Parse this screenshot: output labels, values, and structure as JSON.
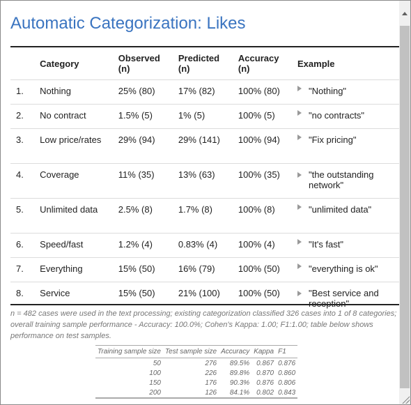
{
  "title": "Automatic Categorization: Likes",
  "table": {
    "headers": {
      "category": "Category",
      "observed": "Observed\n(n)",
      "predicted": "Predicted\n(n)",
      "accuracy": "Accuracy\n(n)",
      "example": "Example"
    },
    "rows": [
      {
        "num": "1.",
        "category": "Nothing",
        "observed": "25% (80)",
        "predicted": "17% (82)",
        "accuracy": "100% (80)",
        "example": "\"Nothing\""
      },
      {
        "num": "2.",
        "category": "No contract",
        "observed": "1.5% (5)",
        "predicted": "1% (5)",
        "accuracy": "100% (5)",
        "example": "\"no contracts\""
      },
      {
        "num": "3.",
        "category": "Low price/rates",
        "observed": "29% (94)",
        "predicted": "29% (141)",
        "accuracy": "100% (94)",
        "example": "\"Fix pricing\""
      },
      {
        "num": "4.",
        "category": "Coverage",
        "observed": "11% (35)",
        "predicted": "13% (63)",
        "accuracy": "100% (35)",
        "example": "\"the outstanding network\""
      },
      {
        "num": "5.",
        "category": "Unlimited data",
        "observed": "2.5% (8)",
        "predicted": "1.7% (8)",
        "accuracy": "100% (8)",
        "example": "\"unlimited data\""
      },
      {
        "num": "6.",
        "category": "Speed/fast",
        "observed": "1.2% (4)",
        "predicted": "0.83% (4)",
        "accuracy": "100% (4)",
        "example": "\"It's fast\""
      },
      {
        "num": "7.",
        "category": "Everything",
        "observed": "15% (50)",
        "predicted": "16% (79)",
        "accuracy": "100% (50)",
        "example": "\"everything is ok\""
      },
      {
        "num": "8.",
        "category": "Service",
        "observed": "15% (50)",
        "predicted": "21% (100)",
        "accuracy": "100% (50)",
        "example": "\"Best service and reception\""
      }
    ]
  },
  "footnote": "n = 482 cases were used in the text processing; existing categorization classified 326 cases into 1 of 8 categories; overall training sample performance - Accuracy: 100.0%; Cohen's Kappa: 1.00; F1:1.00; table below shows performance on test samples.",
  "performance": {
    "headers": [
      "Training sample size",
      "Test sample size",
      "Accuracy",
      "Kappa",
      "F1"
    ],
    "rows": [
      [
        "50",
        "276",
        "89.5%",
        "0.867",
        "0.876"
      ],
      [
        "100",
        "226",
        "89.8%",
        "0.870",
        "0.860"
      ],
      [
        "150",
        "176",
        "90.3%",
        "0.876",
        "0.806"
      ],
      [
        "200",
        "126",
        "84.1%",
        "0.802",
        "0.843"
      ]
    ]
  },
  "icons": {
    "expand": "triangle-right-icon",
    "scroll_up": "scroll-up-arrow-icon",
    "resize": "resize-grip-icon"
  }
}
